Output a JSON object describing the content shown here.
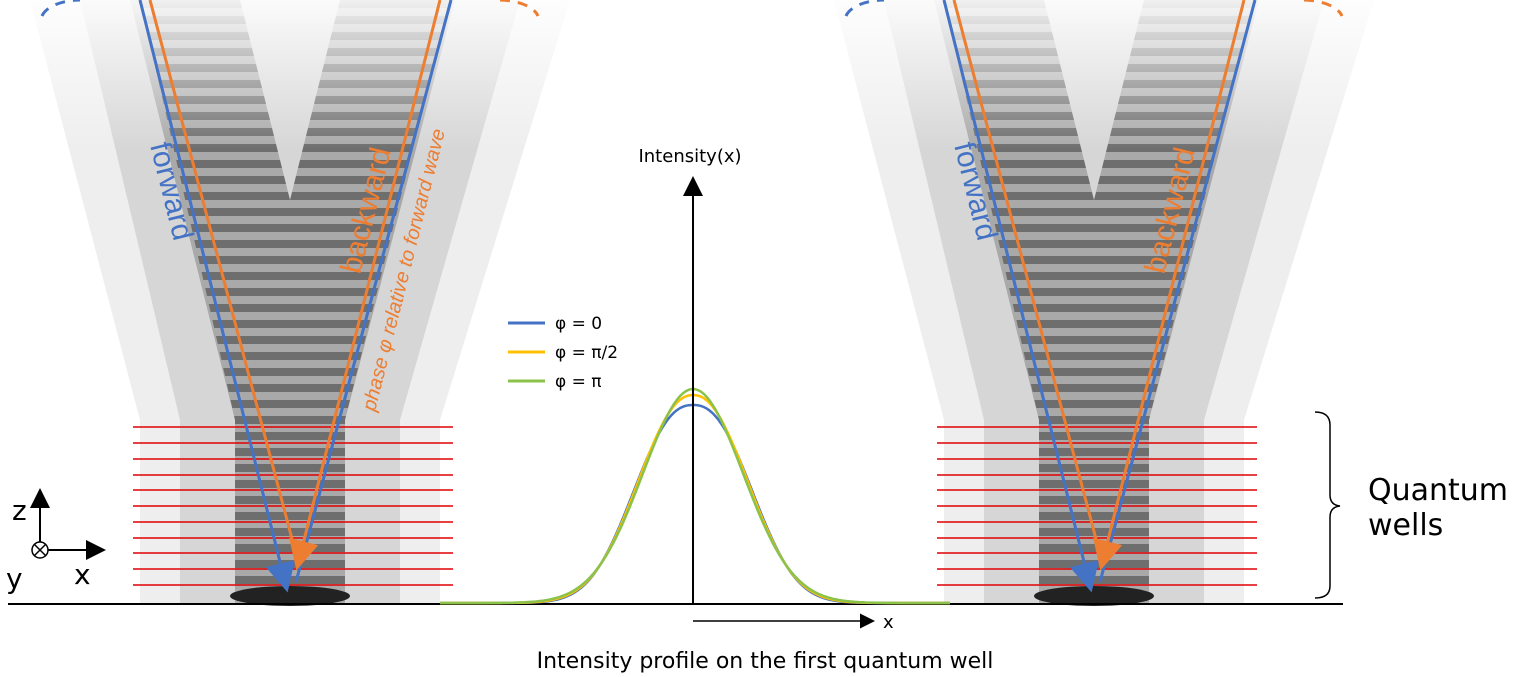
{
  "left_panel": {
    "forward_label": "forward",
    "backward_label": "backward",
    "phase_label": "phase φ relative to forward wave"
  },
  "right_panel": {
    "forward_label": "forward",
    "backward_label": "backward"
  },
  "profile": {
    "y_axis_label": "Intensity(x)",
    "x_axis_label": "x",
    "legend": [
      {
        "name": "φ = 0",
        "color": "#4472c4"
      },
      {
        "name": "φ = π/2",
        "color": "#ffc000"
      },
      {
        "name": "φ = π",
        "color": "#8bc34a"
      }
    ],
    "caption": "Intensity profile on the first quantum well"
  },
  "axes_icon": {
    "z": "z",
    "y": "y",
    "x": "x"
  },
  "quantum_wells_label": [
    "Quantum",
    "wells"
  ]
}
